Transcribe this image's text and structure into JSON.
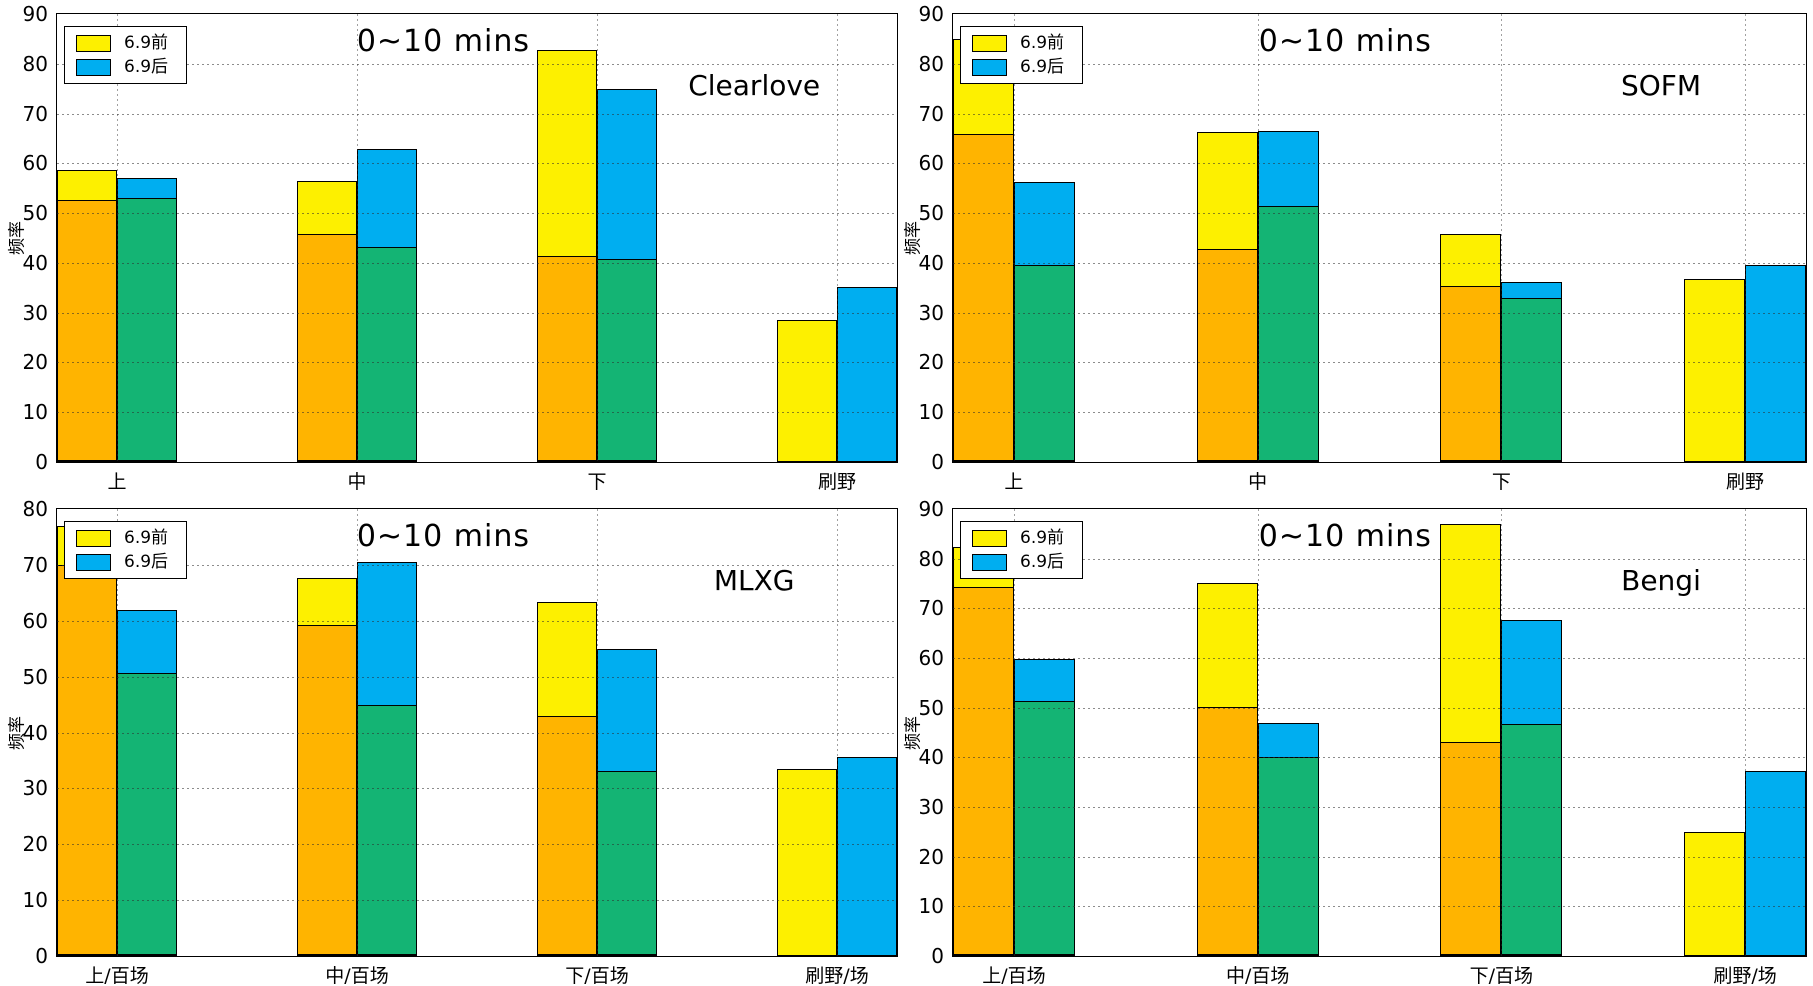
{
  "page": {
    "background": "#ffffff"
  },
  "shared": {
    "title": "0~10 mins",
    "ylabel": "频率",
    "legend": {
      "pre_label": "6.9前",
      "post_label": "6.9后"
    },
    "colors": {
      "pre_bar": "#FDF000",
      "pre_lower": "#FFB400",
      "post_bar": "#00AEF0",
      "post_lower": "#14B474",
      "grid": "#2d2d2d",
      "frame": "#000000"
    }
  },
  "chart_data": [
    {
      "type": "bar",
      "title": "0~10 mins",
      "player": "Clearlove",
      "ylabel": "频率",
      "ylim": [
        0,
        90
      ],
      "yticks": [
        0,
        10,
        20,
        30,
        40,
        50,
        60,
        70,
        80,
        90
      ],
      "grid": true,
      "legend_position": "top-left",
      "categories": [
        "上",
        "中",
        "下",
        "刷野"
      ],
      "series": [
        {
          "name": "6.9前",
          "bar_color": "#FDF000",
          "lower_color": "#FFB400",
          "totals": [
            58.7,
            56.4,
            82.8,
            28.5
          ],
          "lower_splits": [
            52.7,
            46.0,
            41.4,
            0
          ]
        },
        {
          "name": "6.9后",
          "bar_color": "#00AEF0",
          "lower_color": "#14B474",
          "totals": [
            57.0,
            62.8,
            75.0,
            35.2
          ],
          "lower_splits": [
            53.2,
            43.3,
            40.9,
            0
          ]
        }
      ]
    },
    {
      "type": "bar",
      "title": "0~10 mins",
      "player": "SOFM",
      "ylabel": "频率",
      "ylim": [
        0,
        90
      ],
      "yticks": [
        0,
        10,
        20,
        30,
        40,
        50,
        60,
        70,
        80,
        90
      ],
      "grid": true,
      "legend_position": "top-left",
      "categories": [
        "上",
        "中",
        "下",
        "刷野"
      ],
      "series": [
        {
          "name": "6.9前",
          "bar_color": "#FDF000",
          "lower_color": "#FFB400",
          "totals": [
            85.0,
            66.2,
            45.8,
            36.8
          ],
          "lower_splits": [
            66.0,
            42.8,
            35.4,
            0
          ]
        },
        {
          "name": "6.9后",
          "bar_color": "#00AEF0",
          "lower_color": "#14B474",
          "totals": [
            56.2,
            66.5,
            36.1,
            39.5
          ],
          "lower_splits": [
            39.7,
            51.5,
            33.1,
            0
          ]
        }
      ]
    },
    {
      "type": "bar",
      "title": "0~10 mins",
      "player": "MLXG",
      "ylabel": "频率",
      "ylim": [
        0,
        80
      ],
      "yticks": [
        0,
        10,
        20,
        30,
        40,
        50,
        60,
        70,
        80
      ],
      "grid": true,
      "legend_position": "top-left",
      "categories": [
        "上/百场",
        "中/百场",
        "下/百场",
        "刷野/场"
      ],
      "series": [
        {
          "name": "6.9前",
          "bar_color": "#FDF000",
          "lower_color": "#FFB400",
          "totals": [
            77.0,
            67.7,
            63.3,
            33.4
          ],
          "lower_splits": [
            70.2,
            59.3,
            43.0,
            0
          ]
        },
        {
          "name": "6.9后",
          "bar_color": "#00AEF0",
          "lower_color": "#14B474",
          "totals": [
            62.0,
            70.6,
            54.9,
            35.6
          ],
          "lower_splits": [
            50.8,
            45.0,
            33.2,
            0
          ]
        }
      ]
    },
    {
      "type": "bar",
      "title": "0~10 mins",
      "player": "Bengi",
      "ylabel": "频率",
      "ylim": [
        0,
        90
      ],
      "yticks": [
        0,
        10,
        20,
        30,
        40,
        50,
        60,
        70,
        80,
        90
      ],
      "grid": true,
      "legend_position": "top-left",
      "categories": [
        "上/百场",
        "中/百场",
        "下/百场",
        "刷野/场"
      ],
      "series": [
        {
          "name": "6.9前",
          "bar_color": "#FDF000",
          "lower_color": "#FFB400",
          "totals": [
            82.3,
            75.2,
            86.9,
            25.0
          ],
          "lower_splits": [
            74.5,
            50.2,
            43.0,
            0
          ]
        },
        {
          "name": "6.9后",
          "bar_color": "#00AEF0",
          "lower_color": "#14B474",
          "totals": [
            59.8,
            47.0,
            67.7,
            37.3
          ],
          "lower_splits": [
            51.5,
            40.3,
            46.8,
            0
          ]
        }
      ]
    }
  ]
}
